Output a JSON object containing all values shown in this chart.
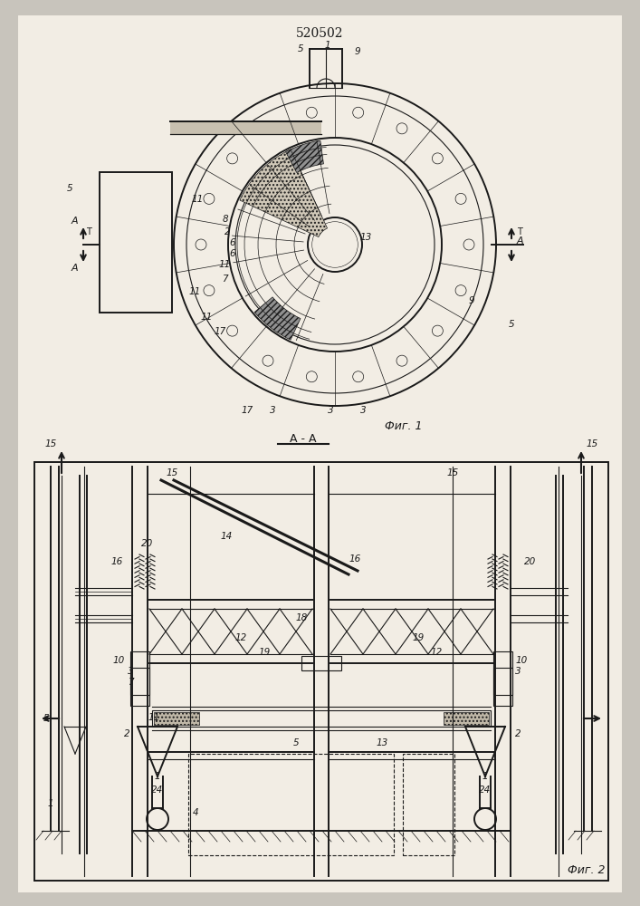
{
  "title": "520502",
  "fig1_label": "Фиг. 1",
  "fig2_label": "Фиг. 2",
  "aa_label": "А - А",
  "bg_outer": "#c8c4bc",
  "bg_page": "#f2ede4",
  "lc": "#1a1a1a"
}
